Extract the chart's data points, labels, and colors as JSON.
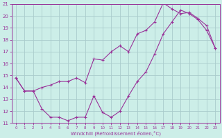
{
  "background_color": "#cceee8",
  "grid_color": "#aacccc",
  "line_color": "#993399",
  "xlim": [
    -0.5,
    23.5
  ],
  "ylim": [
    11,
    21
  ],
  "xticks": [
    0,
    1,
    2,
    3,
    4,
    5,
    6,
    7,
    8,
    9,
    10,
    11,
    12,
    13,
    14,
    15,
    16,
    17,
    18,
    19,
    20,
    21,
    22,
    23
  ],
  "yticks": [
    11,
    12,
    13,
    14,
    15,
    16,
    17,
    18,
    19,
    20,
    21
  ],
  "xlabel": "Windchill (Refroidissement éolien,°C)",
  "line1_x": [
    0,
    1,
    2,
    3,
    4,
    5,
    6,
    7,
    8,
    9,
    10,
    11,
    12,
    13,
    14,
    15,
    16,
    17,
    18,
    19,
    20,
    21,
    22,
    23
  ],
  "line1_y": [
    14.8,
    13.7,
    13.7,
    12.2,
    11.5,
    11.5,
    11.2,
    11.5,
    11.5,
    13.3,
    11.9,
    11.5,
    12.0,
    13.3,
    14.5,
    15.3,
    16.8,
    18.5,
    19.5,
    20.5,
    20.2,
    19.7,
    18.8,
    17.3
  ],
  "line2_x": [
    0,
    1,
    2,
    3,
    4,
    5,
    6,
    7,
    8,
    9,
    10,
    11,
    12,
    13,
    14,
    15,
    16,
    17,
    18,
    19,
    20,
    21,
    22,
    23
  ],
  "line2_y": [
    14.8,
    13.7,
    13.7,
    14.0,
    14.2,
    14.5,
    14.5,
    14.8,
    14.4,
    16.4,
    16.3,
    17.0,
    17.5,
    17.0,
    18.5,
    18.8,
    19.5,
    21.1,
    20.6,
    20.2,
    20.3,
    19.8,
    19.2,
    17.3
  ]
}
